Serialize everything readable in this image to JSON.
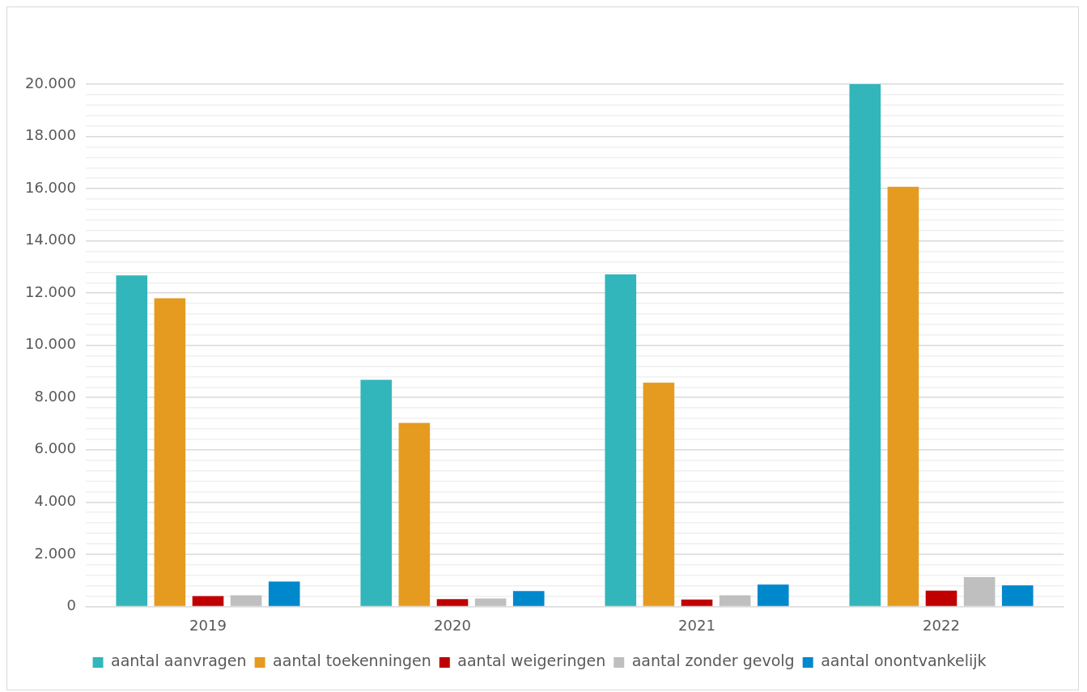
{
  "chart_data": {
    "type": "bar",
    "categories": [
      "2019",
      "2020",
      "2021",
      "2022"
    ],
    "series": [
      {
        "name": "aantal aanvragen",
        "color": "#32b6bb",
        "values": [
          12680,
          8680,
          12720,
          20000
        ]
      },
      {
        "name": "aantal toekenningen",
        "color": "#e59b20",
        "values": [
          11800,
          7030,
          8570,
          16070
        ]
      },
      {
        "name": "aantal weigeringen",
        "color": "#c00000",
        "values": [
          400,
          280,
          270,
          610
        ]
      },
      {
        "name": "aantal zonder gevolg",
        "color": "#bfbfbf",
        "values": [
          430,
          310,
          430,
          1130
        ]
      },
      {
        "name": "aantal onontvankelijk",
        "color": "#0088cc",
        "values": [
          960,
          590,
          840,
          810
        ]
      }
    ],
    "ylim": [
      0,
      20000
    ],
    "yticks": [
      {
        "value": 0,
        "label": "0"
      },
      {
        "value": 400,
        "label": null
      },
      {
        "value": 800,
        "label": null
      },
      {
        "value": 1200,
        "label": null
      },
      {
        "value": 1600,
        "label": null
      },
      {
        "value": 2000,
        "label": "2.000"
      },
      {
        "value": 2400,
        "label": null
      },
      {
        "value": 2800,
        "label": null
      },
      {
        "value": 3200,
        "label": null
      },
      {
        "value": 3600,
        "label": null
      },
      {
        "value": 4000,
        "label": "4.000"
      },
      {
        "value": 4400,
        "label": null
      },
      {
        "value": 4800,
        "label": null
      },
      {
        "value": 5200,
        "label": null
      },
      {
        "value": 5600,
        "label": null
      },
      {
        "value": 6000,
        "label": "6.000"
      },
      {
        "value": 6400,
        "label": null
      },
      {
        "value": 6800,
        "label": null
      },
      {
        "value": 7200,
        "label": null
      },
      {
        "value": 7600,
        "label": null
      },
      {
        "value": 8000,
        "label": "8.000"
      },
      {
        "value": 8400,
        "label": null
      },
      {
        "value": 8800,
        "label": null
      },
      {
        "value": 9200,
        "label": null
      },
      {
        "value": 9600,
        "label": null
      },
      {
        "value": 10000,
        "label": "10.000"
      },
      {
        "value": 10400,
        "label": null
      },
      {
        "value": 10800,
        "label": null
      },
      {
        "value": 11200,
        "label": null
      },
      {
        "value": 11600,
        "label": null
      },
      {
        "value": 12000,
        "label": "12.000"
      },
      {
        "value": 12400,
        "label": null
      },
      {
        "value": 12800,
        "label": null
      },
      {
        "value": 13200,
        "label": null
      },
      {
        "value": 13600,
        "label": null
      },
      {
        "value": 14000,
        "label": "14.000"
      },
      {
        "value": 14400,
        "label": null
      },
      {
        "value": 14800,
        "label": null
      },
      {
        "value": 15200,
        "label": null
      },
      {
        "value": 15600,
        "label": null
      },
      {
        "value": 16000,
        "label": "16.000"
      },
      {
        "value": 16400,
        "label": null
      },
      {
        "value": 16800,
        "label": null
      },
      {
        "value": 17200,
        "label": null
      },
      {
        "value": 17600,
        "label": null
      },
      {
        "value": 18000,
        "label": "18.000"
      },
      {
        "value": 18400,
        "label": null
      },
      {
        "value": 18800,
        "label": null
      },
      {
        "value": 19200,
        "label": null
      },
      {
        "value": 19600,
        "label": null
      },
      {
        "value": 20000,
        "label": "20.000"
      }
    ],
    "grid": "y",
    "legend": "bottom"
  }
}
